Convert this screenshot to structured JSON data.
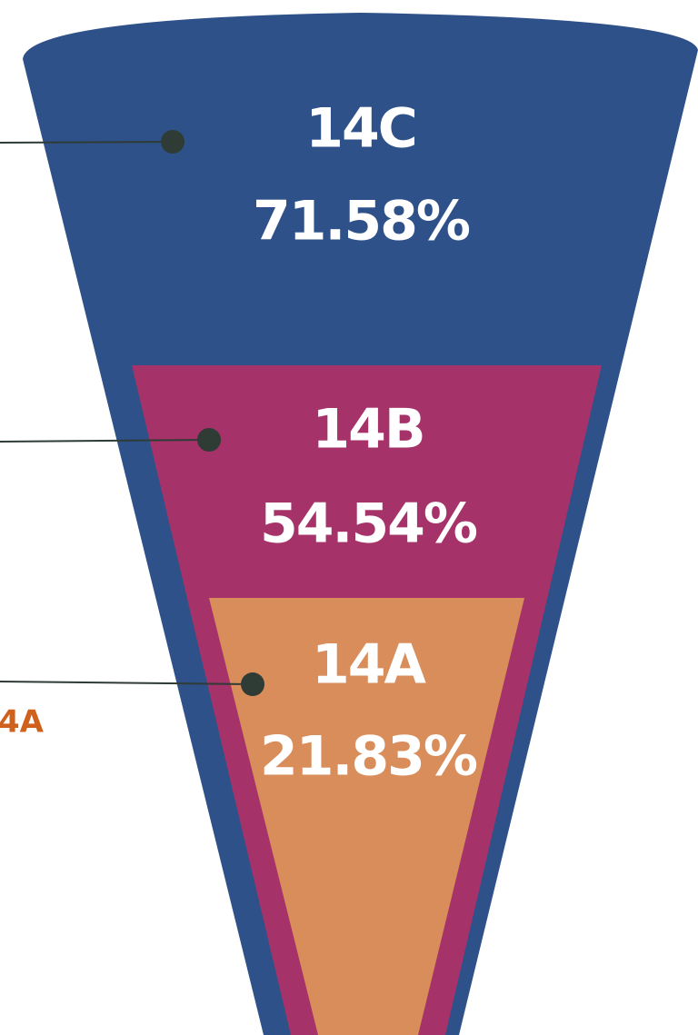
{
  "chart_data": {
    "type": "funnel",
    "categories": [
      "14C",
      "14B",
      "14A"
    ],
    "values": [
      71.58,
      54.54,
      21.83
    ],
    "value_labels": [
      "71.58%",
      "54.54%",
      "21.83%"
    ],
    "colors": [
      "#2e5189",
      "#a5336a",
      "#d98d5a"
    ],
    "annotation": "4A"
  }
}
